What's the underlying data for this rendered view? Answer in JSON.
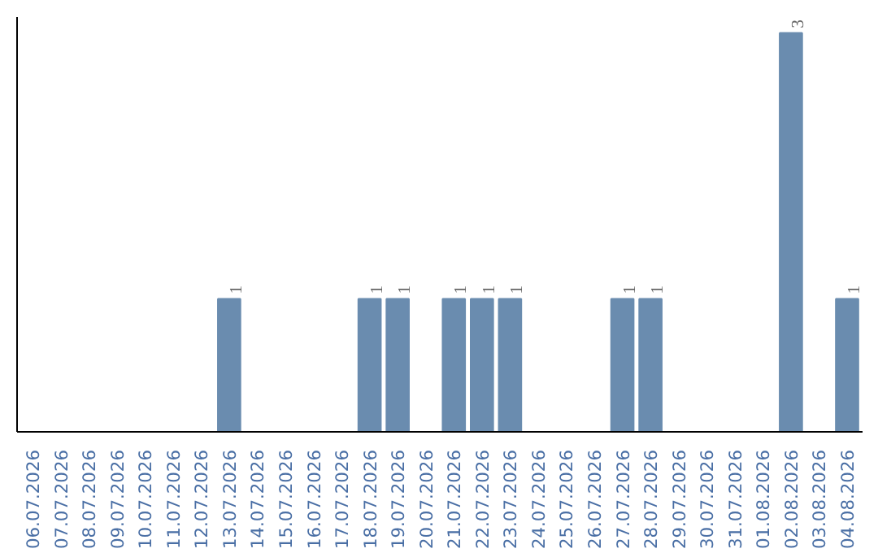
{
  "chart_data": {
    "type": "bar",
    "categories": [
      "06.07.2026",
      "07.07.2026",
      "08.07.2026",
      "09.07.2026",
      "10.07.2026",
      "11.07.2026",
      "12.07.2026",
      "13.07.2026",
      "14.07.2026",
      "15.07.2026",
      "16.07.2026",
      "17.07.2026",
      "18.07.2026",
      "19.07.2026",
      "20.07.2026",
      "21.07.2026",
      "22.07.2026",
      "23.07.2026",
      "24.07.2026",
      "25.07.2026",
      "26.07.2026",
      "27.07.2026",
      "28.07.2026",
      "29.07.2026",
      "30.07.2026",
      "31.07.2026",
      "01.08.2026",
      "02.08.2026",
      "03.08.2026",
      "04.08.2026"
    ],
    "values": [
      0,
      0,
      0,
      0,
      0,
      0,
      0,
      1,
      0,
      0,
      0,
      0,
      1,
      1,
      0,
      1,
      1,
      1,
      0,
      0,
      0,
      1,
      1,
      0,
      0,
      0,
      0,
      3,
      0,
      1
    ],
    "value_labels": [
      null,
      null,
      null,
      null,
      null,
      null,
      null,
      "1",
      null,
      null,
      null,
      null,
      "1",
      "1",
      null,
      "1",
      "1",
      "1",
      null,
      null,
      null,
      "1",
      "1",
      null,
      null,
      null,
      null,
      "3",
      null,
      "1"
    ],
    "color": "#6a8caf",
    "tick_labels": "x",
    "grid": false
  }
}
